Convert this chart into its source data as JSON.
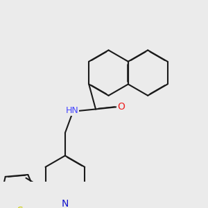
{
  "background_color": "#ebebeb",
  "bond_color": "#1a1a1a",
  "bond_width": 1.5,
  "dbo": 0.018,
  "atom_colors": {
    "N_amide": "#4444ff",
    "N_pyridine": "#1111cc",
    "O": "#ee2222",
    "S": "#cccc00",
    "C": "#1a1a1a"
  },
  "font_size": 9,
  "fig_width": 3.0,
  "fig_height": 3.0,
  "dpi": 100
}
